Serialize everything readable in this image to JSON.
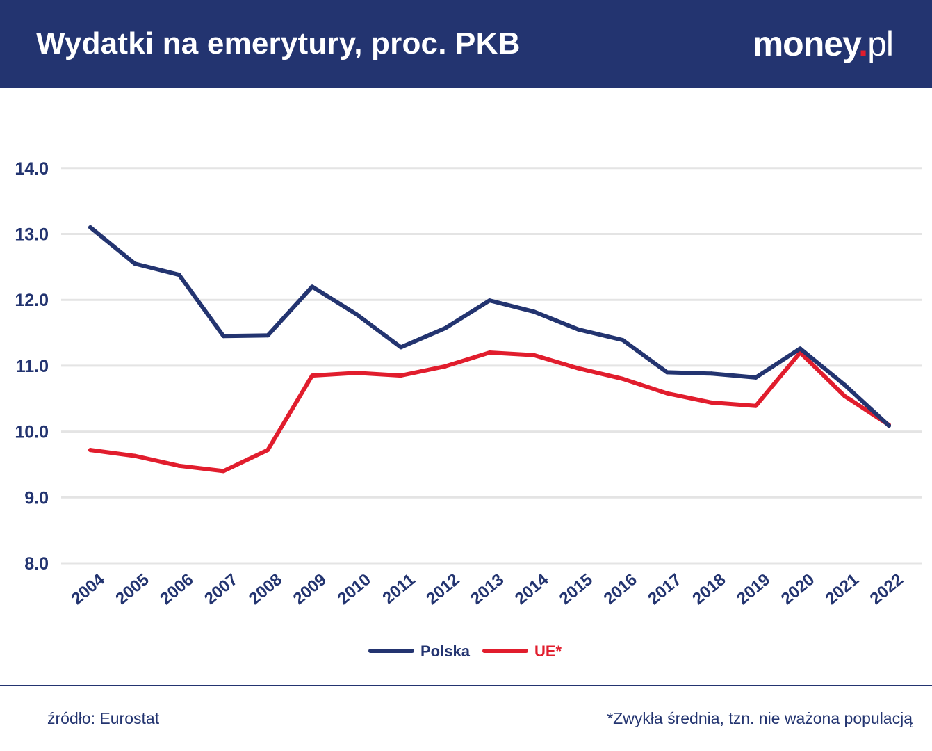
{
  "header": {
    "title": "Wydatki na emerytury, proc. PKB",
    "logo_main": "money",
    "logo_dot": ".",
    "logo_suffix": "pl"
  },
  "colors": {
    "header_bg": "#233470",
    "polska": "#233470",
    "ue": "#e11d2d",
    "grid": "#e4e4e4"
  },
  "chart_data": {
    "type": "line",
    "title": "Wydatki na emerytury, proc. PKB",
    "xlabel": "",
    "ylabel": "",
    "x": [
      "2004",
      "2005",
      "2006",
      "2007",
      "2008",
      "2009",
      "2010",
      "2011",
      "2012",
      "2013",
      "2014",
      "2015",
      "2016",
      "2017",
      "2018",
      "2019",
      "2020",
      "2021",
      "2022"
    ],
    "ylim": [
      8.0,
      14.0
    ],
    "yticks": [
      "8.0",
      "9.0",
      "10.0",
      "11.0",
      "12.0",
      "13.0",
      "14.0"
    ],
    "grid": true,
    "legend_position": "bottom-center",
    "series": [
      {
        "name": "Polska",
        "color": "#233470",
        "values": [
          13.1,
          12.55,
          12.38,
          11.45,
          11.46,
          12.2,
          11.78,
          11.28,
          11.57,
          11.99,
          11.82,
          11.55,
          11.39,
          10.9,
          10.88,
          10.82,
          11.26,
          10.71,
          10.09
        ]
      },
      {
        "name": "UE*",
        "color": "#e11d2d",
        "values": [
          9.72,
          9.63,
          9.48,
          9.4,
          9.72,
          10.85,
          10.89,
          10.85,
          10.99,
          11.2,
          11.16,
          10.96,
          10.8,
          10.58,
          10.44,
          10.39,
          11.2,
          10.54,
          10.1
        ]
      }
    ]
  },
  "footer": {
    "source": "źródło: Eurostat",
    "note": "*Zwykła średnia, tzn. nie ważona populacją"
  }
}
